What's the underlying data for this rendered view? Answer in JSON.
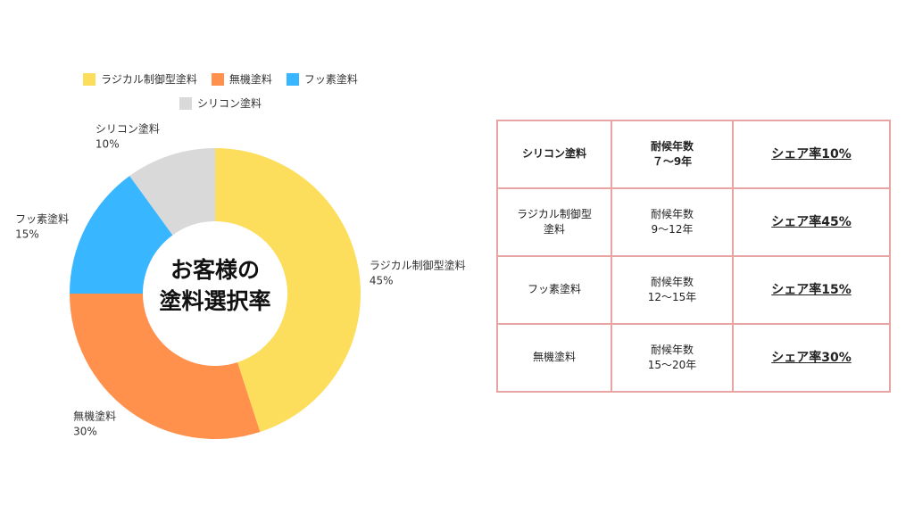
{
  "chart_data": {
    "type": "pie",
    "donut": true,
    "center_text": [
      "お客様の",
      "塗料選択率"
    ],
    "legend": [
      "ラジカル制御型塗料",
      "無機塗料",
      "フッ素塗料",
      "シリコン塗料"
    ],
    "legend_placement": "top",
    "slices": [
      {
        "label": "ラジカル制御型塗料",
        "value": 45,
        "value_label": "45%",
        "color": "#FDDD5C"
      },
      {
        "label": "無機塗料",
        "value": 30,
        "value_label": "30%",
        "color": "#FF914D"
      },
      {
        "label": "フッ素塗料",
        "value": 15,
        "value_label": "15%",
        "color": "#38B6FF"
      },
      {
        "label": "シリコン塗料",
        "value": 10,
        "value_label": "10%",
        "color": "#D9D9D9"
      }
    ]
  },
  "table": {
    "border_color": "#E8A3A3",
    "rows": [
      {
        "name": "シリコン塗料",
        "durability_label": "耐候年数",
        "years": "７～9年",
        "share": "シェア率10%",
        "bold": true
      },
      {
        "name": "ラジカル制御型塗料",
        "durability_label": "耐候年数",
        "years": "9～12年",
        "share": "シェア率45%",
        "bold": false
      },
      {
        "name": "フッ素塗料",
        "durability_label": "耐候年数",
        "years": "12～15年",
        "share": "シェア率15%",
        "bold": false
      },
      {
        "name": "無機塗料",
        "durability_label": "耐候年数",
        "years": "15～20年",
        "share": "シェア率30%",
        "bold": false
      }
    ]
  }
}
